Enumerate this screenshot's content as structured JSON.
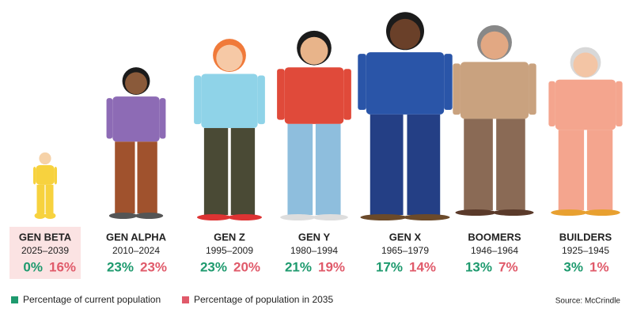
{
  "generations": [
    {
      "name": "GEN BETA",
      "years": "2025–2039",
      "current": "0%",
      "future": "16%"
    },
    {
      "name": "GEN ALPHA",
      "years": "2010–2024",
      "current": "23%",
      "future": "23%"
    },
    {
      "name": "GEN Z",
      "years": "1995–2009",
      "current": "23%",
      "future": "20%"
    },
    {
      "name": "GEN Y",
      "years": "1980–1994",
      "current": "21%",
      "future": "19%"
    },
    {
      "name": "GEN X",
      "years": "1965–1979",
      "current": "17%",
      "future": "14%"
    },
    {
      "name": "BOOMERS",
      "years": "1946–1964",
      "current": "13%",
      "future": "7%"
    },
    {
      "name": "BUILDERS",
      "years": "1925–1945",
      "current": "3%",
      "future": "1%"
    }
  ],
  "legend": {
    "current": "Percentage of current population",
    "future": "Percentage of population in 2035"
  },
  "source": "Source: McCrindle"
}
